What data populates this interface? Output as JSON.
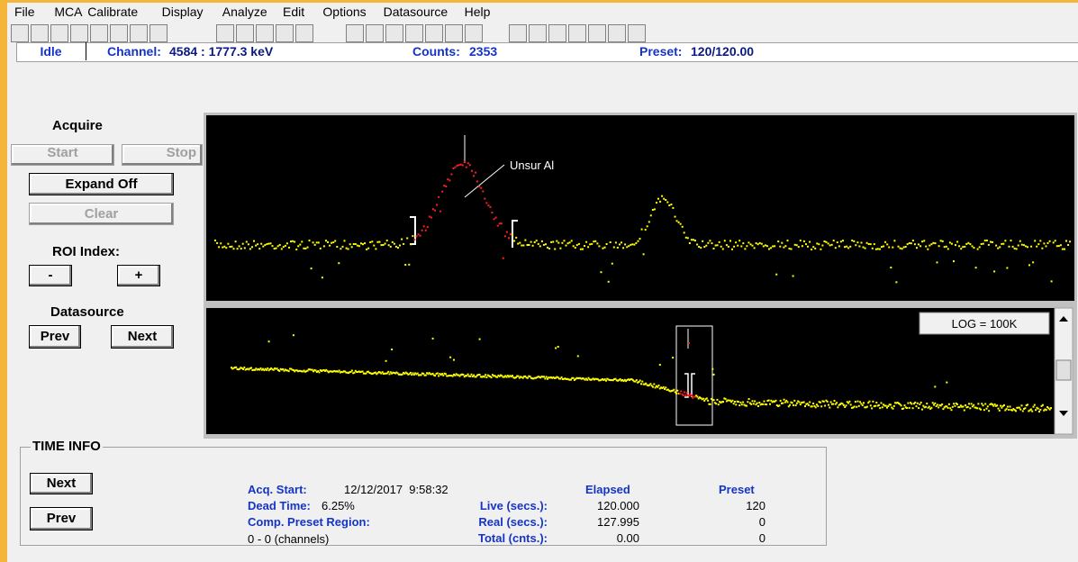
{
  "menu": [
    "File",
    "MCA",
    "Calibrate",
    "Display",
    "Analyze",
    "Edit",
    "Options",
    "Datasource",
    "Help"
  ],
  "status": {
    "state": "Idle",
    "channel_label": "Channel:",
    "channel_value": "4584 : 1777.3 keV",
    "counts_label": "Counts:",
    "counts_value": "2353",
    "preset_label": "Preset:",
    "preset_value": "120/120.00"
  },
  "controls": {
    "acquire": "Acquire",
    "start": "Start",
    "stop": "Stop",
    "expand": "Expand Off",
    "clear": "Clear",
    "roi_index": "ROI Index:",
    "roi_prev": "-",
    "roi_next": "+",
    "datasource": "Datasource",
    "ds_prev": "Prev",
    "ds_next": "Next"
  },
  "spectrum": {
    "annotation": "Unsur Al",
    "scale": "LOG = 100K"
  },
  "time_info": {
    "title": "TIME INFO",
    "next": "Next",
    "prev": "Prev",
    "acq_start_label": "Acq. Start:",
    "acq_start_value": "12/12/2017  9:58:32",
    "dead_time_label": "Dead Time:",
    "dead_time_value": "6.25%",
    "region_label": "Comp. Preset Region:",
    "region_value": "0 - 0 (channels)",
    "elapsed_header": "Elapsed",
    "preset_header": "Preset",
    "rows": [
      [
        "Live (secs.):",
        "120.000",
        "120"
      ],
      [
        "Real (secs.):",
        "127.995",
        "0"
      ],
      [
        "Total (cnts.):",
        "0.00",
        "0"
      ]
    ]
  }
}
